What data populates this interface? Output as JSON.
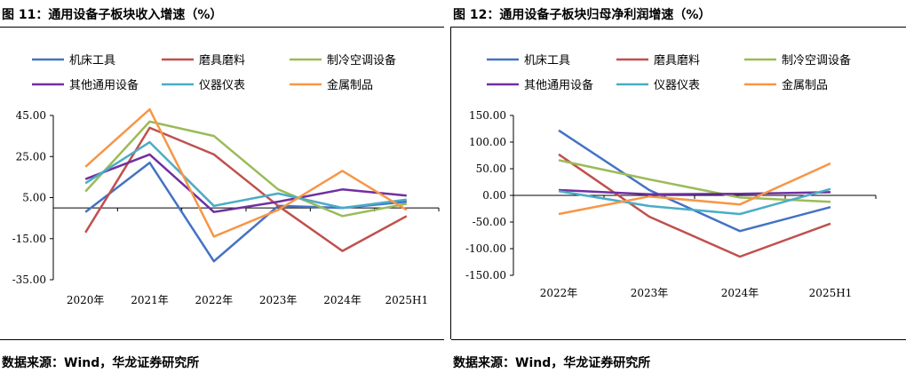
{
  "page": {
    "left_title": "图 11：通用设备子板块收入增速（%）",
    "right_title": "图 12：通用设备子板块归母净利润增速（%）",
    "left_source": "数据来源：Wind，华龙证券研究所",
    "right_source": "数据来源：Wind，华龙证券研究所"
  },
  "chart_data": [
    {
      "type": "line",
      "title": "图 11：通用设备子板块收入增速（%）",
      "categories": [
        "2020年",
        "2021年",
        "2022年",
        "2023年",
        "2024年",
        "2025H1"
      ],
      "ylim": [
        -35,
        45
      ],
      "yticks": [
        "45.00",
        "25.00",
        "5.00",
        "-15.00",
        "-35.00"
      ],
      "ytick_values": [
        45,
        25,
        5,
        -15,
        -35
      ],
      "legend_placement": "top",
      "series": [
        {
          "name": "机床工具",
          "color": "#4472C4",
          "values": [
            -2,
            22,
            -26,
            1,
            0,
            3
          ]
        },
        {
          "name": "磨具磨料",
          "color": "#C0504D",
          "values": [
            -12,
            39,
            26,
            1,
            -21,
            -4
          ]
        },
        {
          "name": "制冷空调设备",
          "color": "#9BBB59",
          "values": [
            8,
            42,
            35,
            9,
            -4,
            2
          ]
        },
        {
          "name": "其他通用设备",
          "color": "#7030A0",
          "values": [
            14,
            26,
            -2,
            3,
            9,
            6
          ]
        },
        {
          "name": "仪器仪表",
          "color": "#4BACC6",
          "values": [
            12,
            32,
            1,
            7,
            0,
            4
          ]
        },
        {
          "name": "金属制品",
          "color": "#F79646",
          "values": [
            20,
            48,
            -14,
            -1,
            18,
            -1
          ]
        }
      ]
    },
    {
      "type": "line",
      "title": "图 12：通用设备子板块归母净利润增速（%）",
      "categories": [
        "2022年",
        "2023年",
        "2024年",
        "2025H1"
      ],
      "ylim": [
        -150,
        150
      ],
      "yticks": [
        "150.00",
        "100.00",
        "50.00",
        "0.00",
        "-50.00",
        "-100.00",
        "-150.00"
      ],
      "ytick_values": [
        150,
        100,
        50,
        0,
        -50,
        -100,
        -150
      ],
      "legend_placement": "top",
      "series": [
        {
          "name": "机床工具",
          "color": "#4472C4",
          "values": [
            122,
            10,
            -67,
            -22
          ]
        },
        {
          "name": "磨具磨料",
          "color": "#C0504D",
          "values": [
            77,
            -40,
            -115,
            -53
          ]
        },
        {
          "name": "制冷空调设备",
          "color": "#9BBB59",
          "values": [
            66,
            30,
            -4,
            -12
          ]
        },
        {
          "name": "其他通用设备",
          "color": "#7030A0",
          "values": [
            10,
            2,
            3,
            6
          ]
        },
        {
          "name": "仪器仪表",
          "color": "#4BACC6",
          "values": [
            8,
            -20,
            -35,
            12
          ]
        },
        {
          "name": "金属制品",
          "color": "#F79646",
          "values": [
            -35,
            -2,
            -17,
            60
          ]
        }
      ]
    }
  ]
}
